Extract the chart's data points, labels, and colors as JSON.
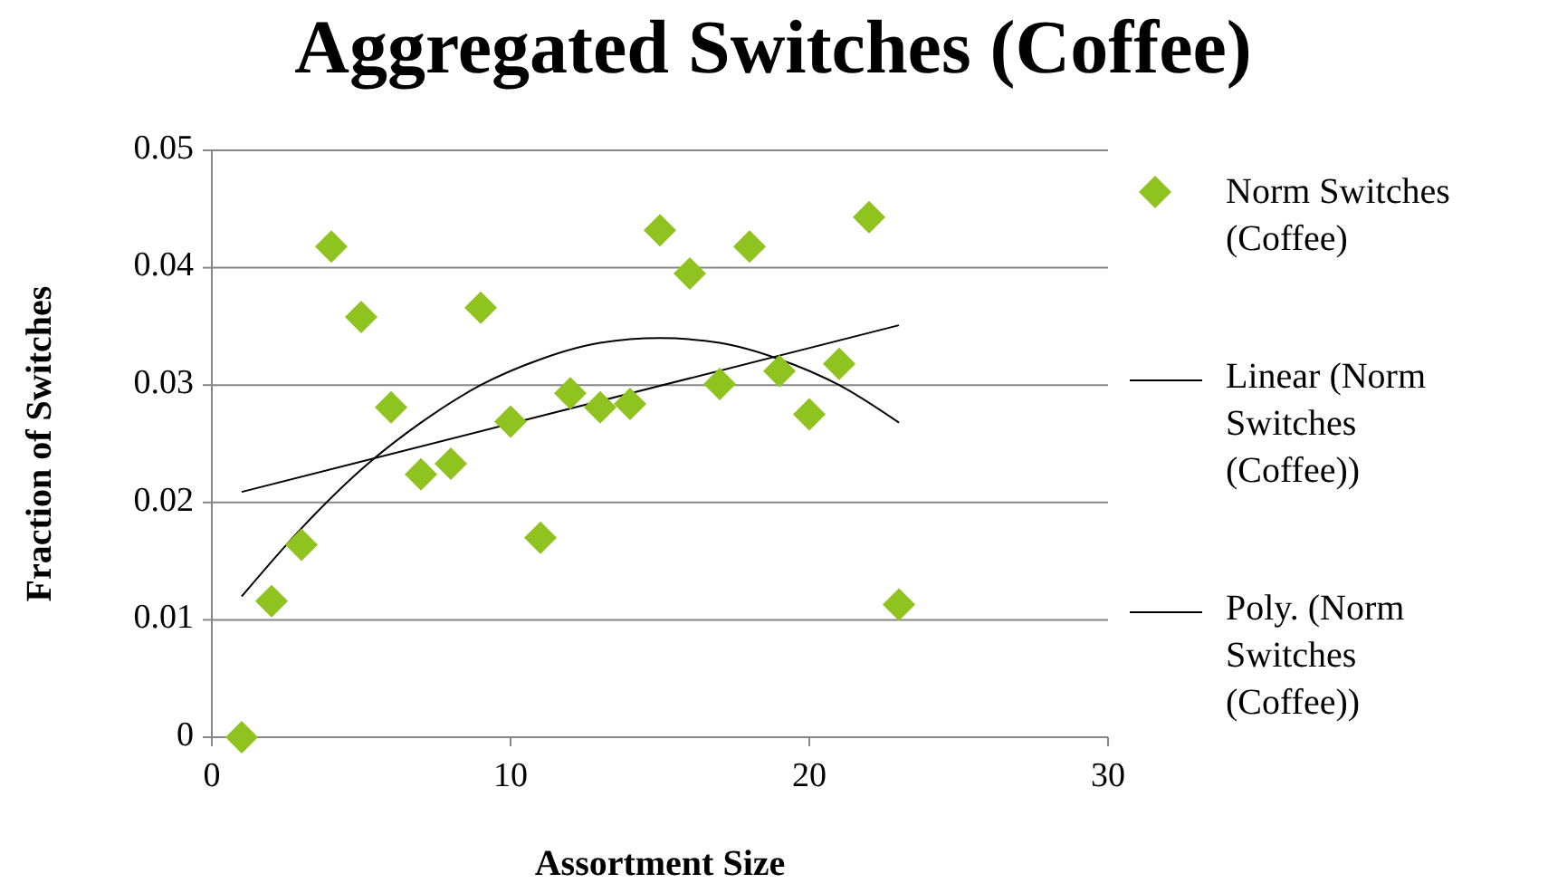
{
  "chart_data": {
    "type": "scatter",
    "title": "Aggregated Switches (Coffee)",
    "xlabel": "Assortment Size",
    "ylabel": "Fraction of Switches",
    "xlim": [
      0,
      30
    ],
    "xticks": [
      0,
      10,
      20,
      30
    ],
    "ylim": [
      0,
      0.05
    ],
    "yticks": [
      {
        "value": 0,
        "label": "0"
      },
      {
        "value": 0.01,
        "label": "0.01"
      },
      {
        "value": 0.02,
        "label": "0.02"
      },
      {
        "value": 0.03,
        "label": "0.03"
      },
      {
        "value": 0.04,
        "label": "0.04"
      },
      {
        "value": 0.05,
        "label": "0.05"
      }
    ],
    "grid": "y",
    "legend": "right",
    "series": [
      {
        "name": "Norm Switches (Coffee)",
        "color": "#8fc31f",
        "marker": "diamond",
        "x": [
          1,
          2,
          3,
          4,
          5,
          6,
          7,
          8,
          9,
          10,
          11,
          12,
          13,
          14,
          15,
          16,
          17,
          18,
          19,
          20,
          21,
          22,
          23
        ],
        "values": [
          0,
          0.0116,
          0.0164,
          0.0418,
          0.0358,
          0.0281,
          0.0224,
          0.0233,
          0.0366,
          0.0269,
          0.017,
          0.0293,
          0.0281,
          0.0284,
          0.0432,
          0.0395,
          0.0301,
          0.0418,
          0.0312,
          0.0275,
          0.0318,
          0.0443,
          0.0113
        ]
      },
      {
        "name": "Linear (Norm Switches (Coffee))",
        "color": "#000000",
        "type": "line",
        "marker": "none",
        "x": [
          1,
          23
        ],
        "values": [
          0.0209,
          0.0351
        ]
      },
      {
        "name": "Poly. (Norm Switches (Coffee))",
        "color": "#000000",
        "type": "line",
        "marker": "none",
        "x": [
          1,
          3,
          5,
          7,
          9,
          11,
          13,
          15,
          17,
          19,
          21,
          23
        ],
        "values": [
          0.012,
          0.0178,
          0.0228,
          0.0268,
          0.03,
          0.0322,
          0.0336,
          0.034,
          0.0336,
          0.0322,
          0.03,
          0.0268
        ]
      }
    ]
  }
}
